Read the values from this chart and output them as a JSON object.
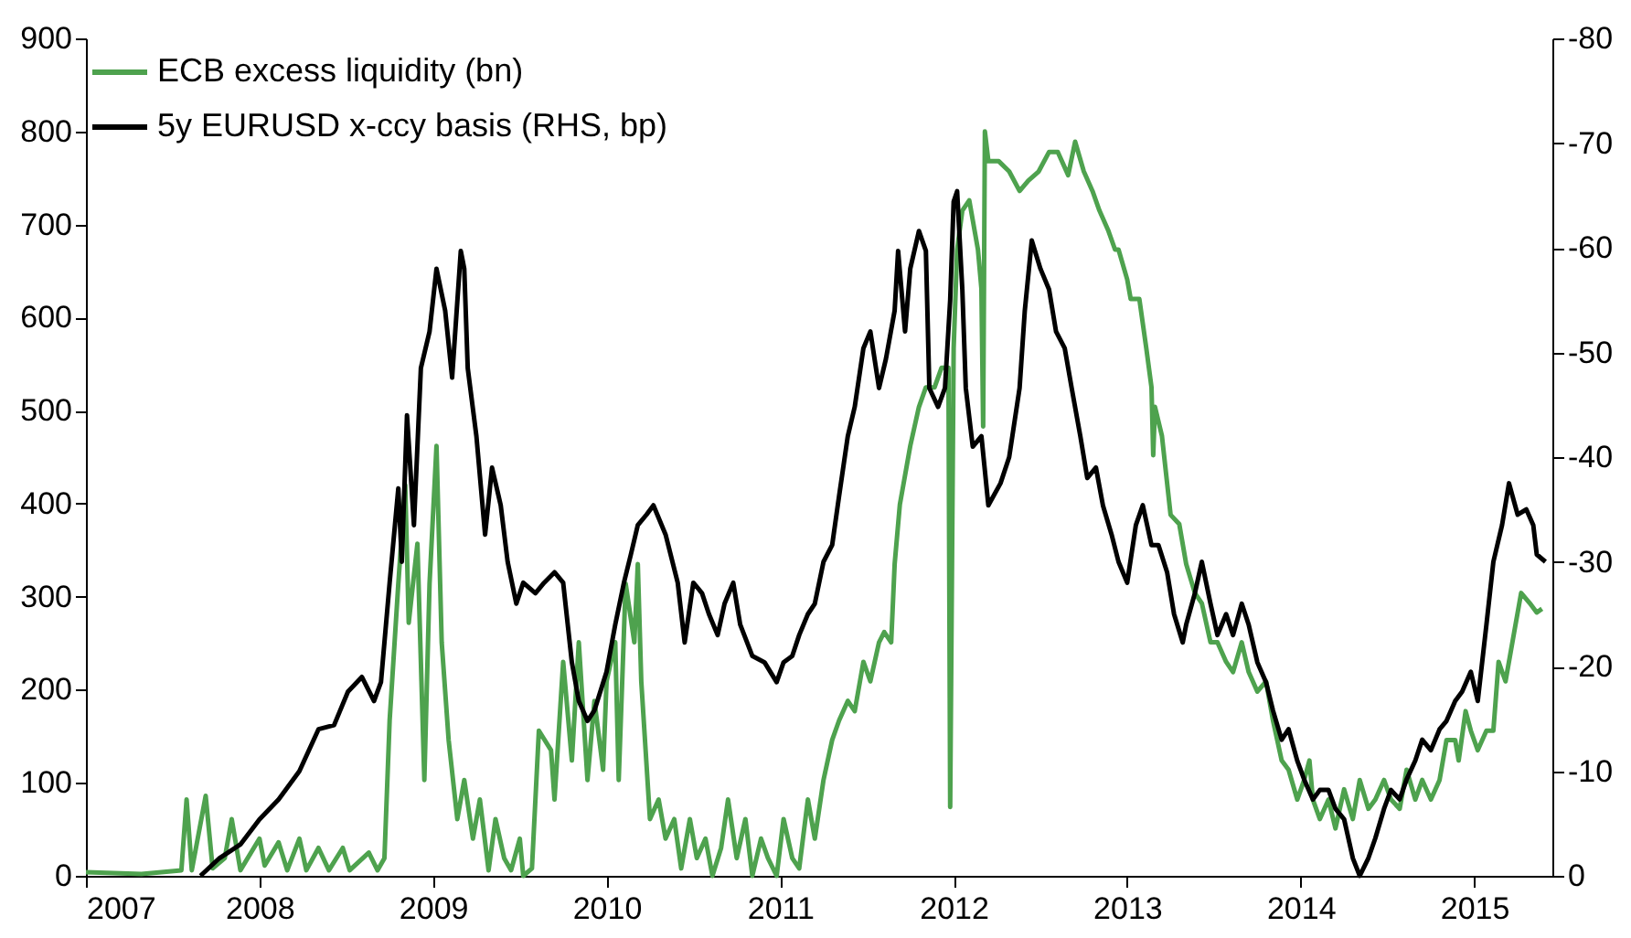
{
  "chart_data": {
    "type": "line",
    "xlim": [
      2007,
      2015.45
    ],
    "xticks": [
      2007,
      2008,
      2009,
      2010,
      2011,
      2012,
      2013,
      2014,
      2015
    ],
    "ylim": [
      0,
      900
    ],
    "yticks": [
      0,
      100,
      200,
      300,
      400,
      500,
      600,
      700,
      800,
      900
    ],
    "y2lim": [
      0,
      -80
    ],
    "y2ticks": [
      0,
      -10,
      -20,
      -30,
      -40,
      -50,
      -60,
      -70,
      -80
    ],
    "grid": false,
    "legend": "top left",
    "line_style": "solid",
    "marker": "none",
    "series": [
      {
        "name": "ECB excess liquidity (bn)",
        "color": "#4ea24e",
        "axis": "y",
        "x": [
          2007.0,
          2007.32,
          2007.55,
          2007.58,
          2007.61,
          2007.69,
          2007.73,
          2007.8,
          2007.84,
          2007.89,
          2008.0,
          2008.03,
          2008.11,
          2008.16,
          2008.23,
          2008.27,
          2008.34,
          2008.4,
          2008.48,
          2008.52,
          2008.63,
          2008.68,
          2008.72,
          2008.75,
          2008.8,
          2008.84,
          2008.86,
          2008.91,
          2008.95,
          2008.98,
          2009.02,
          2009.05,
          2009.09,
          2009.14,
          2009.18,
          2009.23,
          2009.27,
          2009.32,
          2009.36,
          2009.41,
          2009.45,
          2009.5,
          2009.52,
          2009.57,
          2009.61,
          2009.68,
          2009.7,
          2009.75,
          2009.8,
          2009.84,
          2009.89,
          2009.93,
          2009.98,
          2010.0,
          2010.05,
          2010.07,
          2010.11,
          2010.16,
          2010.18,
          2010.2,
          2010.25,
          2010.3,
          2010.34,
          2010.39,
          2010.43,
          2010.48,
          2010.52,
          2010.57,
          2010.61,
          2010.66,
          2010.7,
          2010.75,
          2010.8,
          2010.84,
          2010.89,
          2010.93,
          2010.98,
          2011.02,
          2011.07,
          2011.11,
          2011.16,
          2011.2,
          2011.25,
          2011.3,
          2011.34,
          2011.39,
          2011.43,
          2011.48,
          2011.52,
          2011.57,
          2011.6,
          2011.64,
          2011.66,
          2011.69,
          2011.75,
          2011.8,
          2011.84,
          2011.89,
          2011.93,
          2011.97,
          2011.98,
          2012.0,
          2012.02,
          2012.05,
          2012.09,
          2012.14,
          2012.16,
          2012.17,
          2012.18,
          2012.2,
          2012.26,
          2012.32,
          2012.38,
          2012.43,
          2012.49,
          2012.55,
          2012.6,
          2012.66,
          2012.7,
          2012.75,
          2012.8,
          2012.84,
          2012.89,
          2012.93,
          2012.95,
          2013.0,
          2013.02,
          2013.07,
          2013.11,
          2013.14,
          2013.15,
          2013.16,
          2013.2,
          2013.25,
          2013.3,
          2013.34,
          2013.39,
          2013.43,
          2013.48,
          2013.52,
          2013.57,
          2013.61,
          2013.66,
          2013.7,
          2013.75,
          2013.8,
          2013.84,
          2013.89,
          2013.93,
          2013.98,
          2014.02,
          2014.05,
          2014.07,
          2014.11,
          2014.16,
          2014.2,
          2014.25,
          2014.3,
          2014.34,
          2014.39,
          2014.43,
          2014.48,
          2014.52,
          2014.57,
          2014.61,
          2014.66,
          2014.7,
          2014.75,
          2014.8,
          2014.84,
          2014.89,
          2014.91,
          2014.95,
          2014.98,
          2015.02,
          2015.07,
          2015.11,
          2015.14,
          2015.18,
          2015.23,
          2015.27,
          2015.32,
          2015.36,
          2015.39
        ],
        "values": [
          4,
          2,
          6,
          82,
          6,
          86,
          8,
          19,
          61,
          6,
          40,
          11,
          36,
          6,
          40,
          6,
          30,
          6,
          30,
          6,
          25,
          6,
          19,
          167,
          314,
          420,
          272,
          357,
          103,
          314,
          462,
          251,
          146,
          61,
          103,
          40,
          82,
          6,
          61,
          19,
          6,
          40,
          0,
          8,
          156,
          135,
          82,
          230,
          124,
          251,
          103,
          188,
          114,
          209,
          251,
          103,
          314,
          251,
          335,
          209,
          61,
          82,
          40,
          61,
          8,
          61,
          19,
          40,
          0,
          30,
          82,
          19,
          61,
          0,
          40,
          19,
          0,
          61,
          19,
          8,
          82,
          40,
          103,
          146,
          167,
          188,
          177,
          230,
          209,
          251,
          262,
          251,
          335,
          399,
          462,
          504,
          525,
          525,
          546,
          546,
          74,
          567,
          673,
          715,
          726,
          673,
          631,
          483,
          800,
          768,
          768,
          757,
          736,
          747,
          757,
          778,
          778,
          753,
          789,
          757,
          736,
          715,
          694,
          673,
          673,
          641,
          620,
          620,
          567,
          525,
          452,
          504,
          473,
          388,
          378,
          335,
          304,
          293,
          251,
          251,
          230,
          219,
          251,
          219,
          198,
          209,
          167,
          124,
          114,
          82,
          103,
          124,
          82,
          61,
          82,
          51,
          93,
          61,
          103,
          72,
          82,
          103,
          82,
          72,
          114,
          82,
          103,
          82,
          103,
          146,
          146,
          124,
          177,
          156,
          135,
          156,
          156,
          230,
          209,
          262,
          304,
          293,
          283,
          287
        ]
      },
      {
        "name": "5y EURUSD x-ccy basis (RHS, bp)",
        "color": "#000000",
        "axis": "y2",
        "x": [
          2007.66,
          2007.77,
          2007.89,
          2008.0,
          2008.11,
          2008.23,
          2008.34,
          2008.43,
          2008.51,
          2008.59,
          2008.66,
          2008.7,
          2008.75,
          2008.8,
          2008.82,
          2008.85,
          2008.89,
          2008.93,
          2008.98,
          2009.02,
          2009.07,
          2009.11,
          2009.16,
          2009.18,
          2009.2,
          2009.25,
          2009.3,
          2009.34,
          2009.39,
          2009.43,
          2009.48,
          2009.52,
          2009.59,
          2009.64,
          2009.7,
          2009.75,
          2009.8,
          2009.84,
          2009.89,
          2009.93,
          2010.0,
          2010.05,
          2010.1,
          2010.14,
          2010.18,
          2010.23,
          2010.27,
          2010.34,
          2010.41,
          2010.45,
          2010.5,
          2010.55,
          2010.59,
          2010.64,
          2010.68,
          2010.73,
          2010.77,
          2010.84,
          2010.91,
          2010.98,
          2011.02,
          2011.07,
          2011.11,
          2011.16,
          2011.2,
          2011.25,
          2011.3,
          2011.34,
          2011.39,
          2011.43,
          2011.48,
          2011.52,
          2011.57,
          2011.61,
          2011.66,
          2011.68,
          2011.72,
          2011.75,
          2011.8,
          2011.84,
          2011.86,
          2011.91,
          2011.95,
          2011.98,
          2012.0,
          2012.02,
          2012.05,
          2012.07,
          2012.11,
          2012.16,
          2012.2,
          2012.27,
          2012.32,
          2012.38,
          2012.41,
          2012.45,
          2012.5,
          2012.55,
          2012.59,
          2012.64,
          2012.68,
          2012.73,
          2012.77,
          2012.82,
          2012.86,
          2012.91,
          2012.95,
          2013.0,
          2013.05,
          2013.09,
          2013.14,
          2013.18,
          2013.23,
          2013.27,
          2013.32,
          2013.34,
          2013.39,
          2013.43,
          2013.48,
          2013.52,
          2013.57,
          2013.61,
          2013.66,
          2013.7,
          2013.75,
          2013.8,
          2013.84,
          2013.89,
          2013.93,
          2013.98,
          2014.02,
          2014.07,
          2014.11,
          2014.16,
          2014.2,
          2014.25,
          2014.3,
          2014.34,
          2014.39,
          2014.43,
          2014.48,
          2014.52,
          2014.57,
          2014.61,
          2014.66,
          2014.7,
          2014.75,
          2014.8,
          2014.84,
          2014.89,
          2014.93,
          2014.98,
          2015.02,
          2015.07,
          2015.11,
          2015.16,
          2015.2,
          2015.25,
          2015.3,
          2015.34,
          2015.36,
          2015.41
        ],
        "values": [
          0,
          -1.7,
          -3,
          -5.4,
          -7.3,
          -10,
          -14,
          -14.4,
          -17.6,
          -19,
          -16.7,
          -18.5,
          -28,
          -37,
          -30,
          -44,
          -33.5,
          -48.5,
          -52,
          -58,
          -54,
          -47.6,
          -59.7,
          -58,
          -48.5,
          -42,
          -32.6,
          -39,
          -35.4,
          -30,
          -26,
          -28,
          -27,
          -28,
          -29,
          -28,
          -20.4,
          -16.7,
          -14.8,
          -15.8,
          -19.5,
          -24,
          -28,
          -30.7,
          -33.5,
          -34.5,
          -35.4,
          -32.6,
          -28,
          -22.3,
          -28,
          -27,
          -25,
          -23,
          -26,
          -28,
          -24,
          -21,
          -20.4,
          -18.5,
          -20.4,
          -21,
          -23,
          -25,
          -26,
          -30,
          -31.6,
          -36.3,
          -42,
          -44.8,
          -50.4,
          -52,
          -46.6,
          -49.4,
          -54,
          -59.7,
          -52,
          -58,
          -61.6,
          -59.7,
          -46.6,
          -44.8,
          -46.6,
          -55,
          -64.4,
          -65.4,
          -56,
          -46.6,
          -41,
          -42,
          -35.4,
          -37.5,
          -40,
          -46.6,
          -54,
          -60.7,
          -58,
          -56,
          -52,
          -50.4,
          -46.6,
          -42,
          -38,
          -39,
          -35.4,
          -32.6,
          -30,
          -28,
          -33.5,
          -35.4,
          -31.6,
          -31.6,
          -29,
          -25,
          -22.3,
          -24,
          -27,
          -30,
          -26,
          -23,
          -25,
          -23,
          -26,
          -24,
          -20.4,
          -18.5,
          -15.8,
          -13,
          -14,
          -11,
          -9.2,
          -7.3,
          -8.2,
          -8.2,
          -6.4,
          -5.4,
          -1.7,
          0,
          -1.7,
          -3.6,
          -6.4,
          -8.2,
          -7.3,
          -9.2,
          -11,
          -13,
          -12,
          -14,
          -14.8,
          -16.7,
          -17.6,
          -19.5,
          -16.7,
          -24,
          -30,
          -33.5,
          -37.5,
          -34.5,
          -35,
          -33.5,
          -30.7,
          -30
        ]
      }
    ]
  }
}
